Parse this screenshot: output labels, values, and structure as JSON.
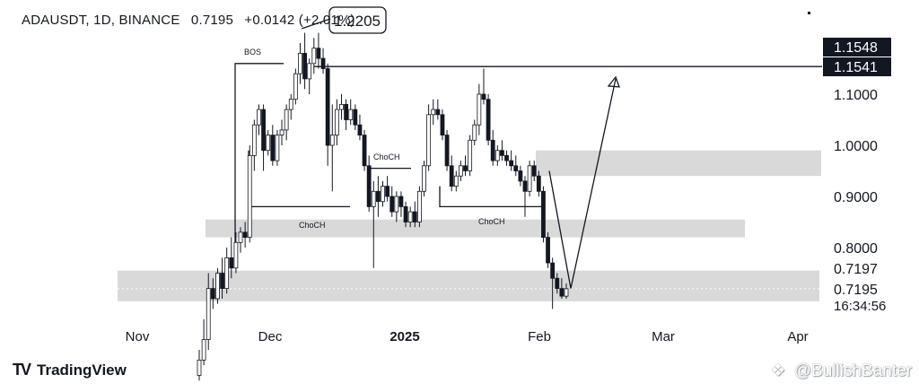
{
  "header": {
    "symbol": "ADAUSDT, 1D, BINANCE",
    "price": "0.7195",
    "change": "+0.0142 (+2.01%)"
  },
  "brand": {
    "logo_icon": "tradingview-logo-icon",
    "name": "TradingView"
  },
  "watermark": {
    "icon": "diamond-logo-icon",
    "text": "@BullishBanter"
  },
  "chart_data": {
    "type": "candlestick",
    "x_ticks": [
      "Nov",
      "Dec",
      "2025",
      "Feb",
      "Mar",
      "Apr"
    ],
    "y_ticks": [
      "1.1000",
      "1.0000",
      "0.9000",
      "0.8000"
    ],
    "price_labels": [
      {
        "text": "1.1548",
        "value": 1.1548,
        "style": "dark"
      },
      {
        "text": "1.1541",
        "value": 1.1541,
        "style": "dark"
      },
      {
        "text": "0.7197",
        "value": 0.7197,
        "style": "plain"
      },
      {
        "text": "0.7195",
        "value": 0.7195,
        "style": "plain"
      }
    ],
    "time_label": "16:34:56",
    "callout": {
      "text": "1.2205",
      "value": 1.2205
    },
    "annotations": [
      {
        "text": "BOS",
        "value": 1.16
      },
      {
        "text": "ChoCH",
        "value": 0.96
      },
      {
        "text": "ChoCH",
        "value": 0.81
      },
      {
        "text": "ChoCH",
        "value": 0.81
      }
    ],
    "zones": [
      {
        "from": 0.94,
        "to": 0.99,
        "color": "#d9d9d9"
      },
      {
        "from": 0.82,
        "to": 0.855,
        "color": "#d9d9d9"
      },
      {
        "from": 0.695,
        "to": 0.755,
        "color": "#d9d9d9"
      }
    ],
    "horizontal_lines": [
      {
        "value": 1.1541
      }
    ],
    "candles": [
      [
        0.55,
        0.6,
        0.54,
        0.58
      ],
      [
        0.58,
        0.66,
        0.57,
        0.62
      ],
      [
        0.62,
        0.75,
        0.6,
        0.72
      ],
      [
        0.72,
        0.74,
        0.68,
        0.7
      ],
      [
        0.7,
        0.76,
        0.69,
        0.75
      ],
      [
        0.75,
        0.78,
        0.7,
        0.72
      ],
      [
        0.72,
        0.8,
        0.71,
        0.78
      ],
      [
        0.78,
        0.82,
        0.74,
        0.76
      ],
      [
        0.76,
        0.83,
        0.75,
        0.81
      ],
      [
        0.81,
        0.84,
        0.79,
        0.83
      ],
      [
        0.83,
        0.85,
        0.8,
        0.82
      ],
      [
        0.82,
        1.0,
        0.81,
        0.98
      ],
      [
        0.98,
        1.05,
        0.95,
        1.04
      ],
      [
        1.04,
        1.08,
        1.02,
        1.07
      ],
      [
        1.07,
        1.08,
        0.95,
        0.99
      ],
      [
        0.99,
        1.03,
        0.98,
        1.02
      ],
      [
        1.02,
        1.04,
        0.96,
        0.97
      ],
      [
        0.97,
        1.03,
        0.96,
        1.02
      ],
      [
        1.02,
        1.05,
        1.0,
        1.03
      ],
      [
        1.03,
        1.08,
        1.01,
        1.07
      ],
      [
        1.07,
        1.1,
        1.05,
        1.09
      ],
      [
        1.09,
        1.15,
        1.08,
        1.14
      ],
      [
        1.14,
        1.2,
        1.12,
        1.18
      ],
      [
        1.18,
        1.22,
        1.11,
        1.13
      ],
      [
        1.13,
        1.17,
        1.1,
        1.16
      ],
      [
        1.16,
        1.21,
        1.14,
        1.19
      ],
      [
        1.19,
        1.22,
        1.15,
        1.17
      ],
      [
        1.17,
        1.19,
        1.14,
        1.15
      ],
      [
        1.15,
        1.16,
        0.96,
        1.0
      ],
      [
        1.0,
        1.08,
        0.91,
        1.02
      ],
      [
        1.02,
        1.09,
        1.0,
        1.07
      ],
      [
        1.07,
        1.1,
        1.05,
        1.08
      ],
      [
        1.08,
        1.09,
        1.03,
        1.05
      ],
      [
        1.05,
        1.09,
        1.04,
        1.07
      ],
      [
        1.07,
        1.08,
        1.03,
        1.04
      ],
      [
        1.04,
        1.06,
        1.01,
        1.02
      ],
      [
        1.02,
        1.03,
        0.95,
        0.96
      ],
      [
        0.96,
        0.98,
        0.87,
        0.88
      ],
      [
        0.88,
        0.93,
        0.76,
        0.91
      ],
      [
        0.91,
        0.94,
        0.86,
        0.89
      ],
      [
        0.89,
        0.93,
        0.88,
        0.92
      ],
      [
        0.92,
        0.94,
        0.89,
        0.9
      ],
      [
        0.9,
        0.92,
        0.86,
        0.87
      ],
      [
        0.87,
        0.91,
        0.85,
        0.9
      ],
      [
        0.9,
        0.91,
        0.86,
        0.88
      ],
      [
        0.88,
        0.89,
        0.84,
        0.85
      ],
      [
        0.85,
        0.88,
        0.84,
        0.87
      ],
      [
        0.87,
        0.89,
        0.84,
        0.85
      ],
      [
        0.85,
        0.92,
        0.84,
        0.91
      ],
      [
        0.91,
        0.97,
        0.9,
        0.96
      ],
      [
        0.96,
        1.08,
        0.95,
        1.06
      ],
      [
        1.06,
        1.09,
        1.04,
        1.07
      ],
      [
        1.07,
        1.09,
        1.05,
        1.06
      ],
      [
        1.06,
        1.07,
        1.01,
        1.02
      ],
      [
        1.02,
        1.03,
        0.95,
        0.96
      ],
      [
        0.96,
        0.98,
        0.91,
        0.92
      ],
      [
        0.92,
        0.95,
        0.91,
        0.94
      ],
      [
        0.94,
        0.97,
        0.93,
        0.96
      ],
      [
        0.96,
        0.98,
        0.94,
        0.95
      ],
      [
        0.95,
        1.02,
        0.94,
        1.01
      ],
      [
        1.01,
        1.05,
        1.0,
        1.04
      ],
      [
        1.04,
        1.12,
        1.02,
        1.1
      ],
      [
        1.1,
        1.15,
        1.08,
        1.09
      ],
      [
        1.09,
        1.1,
        1.0,
        1.01
      ],
      [
        1.01,
        1.03,
        0.96,
        0.97
      ],
      [
        0.97,
        1.0,
        0.96,
        0.99
      ],
      [
        0.99,
        1.01,
        0.97,
        0.98
      ],
      [
        0.98,
        0.99,
        0.96,
        0.97
      ],
      [
        0.97,
        0.99,
        0.95,
        0.96
      ],
      [
        0.96,
        0.98,
        0.94,
        0.95
      ],
      [
        0.95,
        0.96,
        0.92,
        0.93
      ],
      [
        0.93,
        0.94,
        0.86,
        0.91
      ],
      [
        0.91,
        0.97,
        0.9,
        0.96
      ],
      [
        0.96,
        0.97,
        0.93,
        0.94
      ],
      [
        0.94,
        0.95,
        0.9,
        0.91
      ],
      [
        0.91,
        0.92,
        0.81,
        0.82
      ],
      [
        0.82,
        0.83,
        0.76,
        0.77
      ],
      [
        0.77,
        0.78,
        0.68,
        0.74
      ],
      [
        0.74,
        0.75,
        0.71,
        0.72
      ],
      [
        0.72,
        0.74,
        0.7,
        0.705
      ],
      [
        0.705,
        0.73,
        0.7,
        0.7195
      ]
    ]
  }
}
